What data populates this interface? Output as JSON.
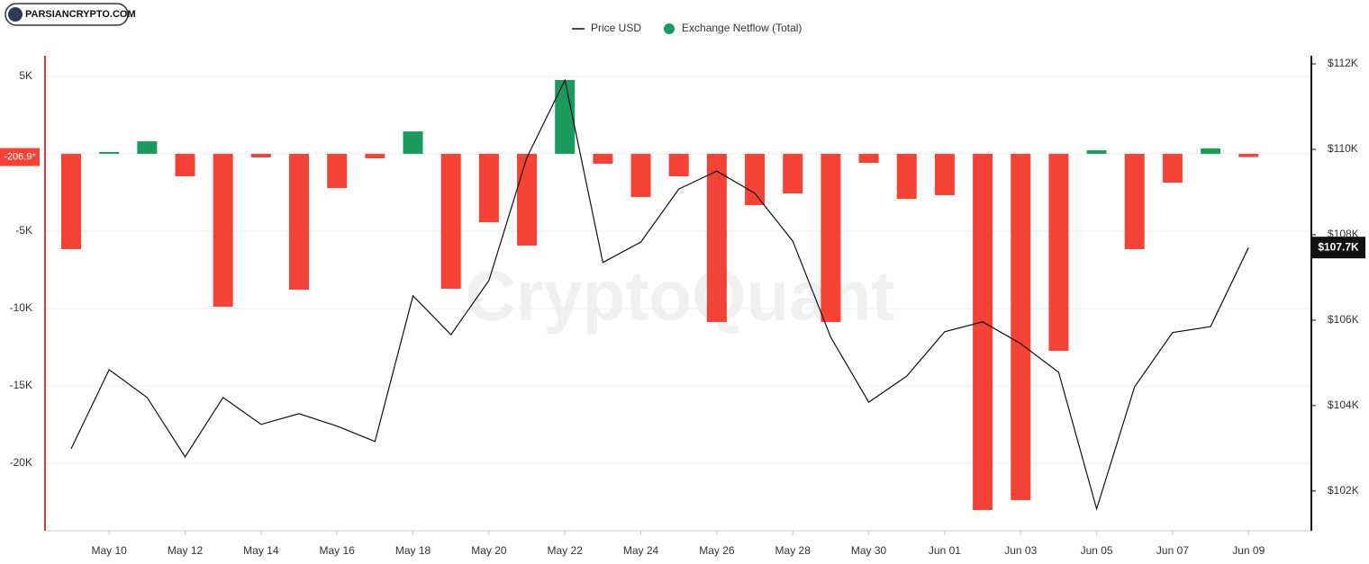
{
  "chart_data": {
    "type": "bar-line",
    "logo_text": "PARSIANCRYPTO.COM",
    "watermark": "CryptoQuant",
    "categories": [
      null,
      "May 10",
      null,
      "May 12",
      null,
      "May 14",
      null,
      "May 16",
      null,
      "May 18",
      null,
      "May 20",
      null,
      "May 22",
      null,
      "May 24",
      null,
      "May 26",
      null,
      "May 28",
      null,
      "May 30",
      null,
      "Jun 01",
      null,
      "Jun 03",
      null,
      "Jun 05",
      null,
      "Jun 07",
      null,
      "Jun 09"
    ],
    "series": [
      {
        "name": "Price USD",
        "type": "line",
        "axis": "y2",
        "color": "#111111",
        "values": [
          102990,
          104840,
          104190,
          102800,
          104190,
          103560,
          103810,
          103520,
          103160,
          106570,
          105660,
          106930,
          109810,
          111620,
          107350,
          107830,
          109070,
          109490,
          108970,
          107850,
          105600,
          104080,
          104690,
          105730,
          105960,
          105450,
          104780,
          101580,
          104440,
          105710,
          105850,
          107700
        ],
        "last_value_label": "$107.7K"
      },
      {
        "name": "Exchange Netflow (Total)",
        "type": "bar",
        "color": "#1a9a5c",
        "negative_color": "#f44336",
        "values": [
          -6160,
          120,
          810,
          -1450,
          -9880,
          -230,
          -8780,
          -2210,
          -290,
          1450,
          -8720,
          -4420,
          -5930,
          4770,
          -640,
          -2790,
          -1450,
          -10870,
          -3310,
          -2560,
          -10870,
          -580,
          -2910,
          -2670,
          -23020,
          -22380,
          -12730,
          230,
          -6160,
          -1860,
          350,
          -206.9
        ],
        "last_value_label": "-206.9*"
      }
    ],
    "ylim": [
      -24360,
      6340
    ],
    "yticks": [
      {
        "value": 5000,
        "label": "5K"
      },
      {
        "value": -5000,
        "label": "-5K"
      },
      {
        "value": -10000,
        "label": "-10K"
      },
      {
        "value": -15000,
        "label": "-15K"
      },
      {
        "value": -20000,
        "label": "-20K"
      }
    ],
    "y2lim": [
      101070,
      112190
    ],
    "y2ticks": [
      {
        "value": 112000,
        "label": "$112K"
      },
      {
        "value": 110000,
        "label": "$110K"
      },
      {
        "value": 108000,
        "label": "$108K"
      },
      {
        "value": 106000,
        "label": "$106K"
      },
      {
        "value": 104000,
        "label": "$104K"
      },
      {
        "value": 102000,
        "label": "$102K"
      }
    ],
    "grid": true
  }
}
